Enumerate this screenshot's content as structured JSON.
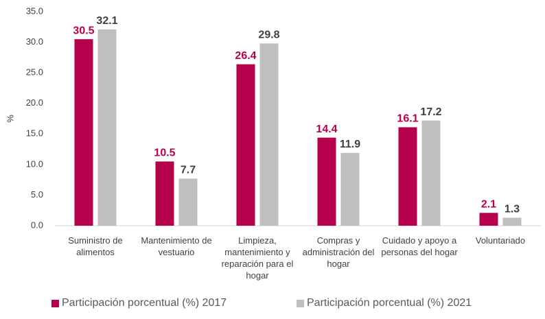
{
  "chart_data": {
    "type": "bar",
    "y_label": "%",
    "categories": [
      "Suministro de alimentos",
      "Mantenimiento de vestuario",
      "Limpieza, mantenimiento y reparación para el hogar",
      "Compras y administración del hogar",
      "Cuidado y apoyo a personas del hogar",
      "Voluntariado"
    ],
    "series": [
      {
        "name": "Participación porcentual (%) 2017",
        "color": "#b5004b",
        "label_color": "#b5004b",
        "values": [
          30.5,
          10.5,
          26.4,
          14.4,
          16.1,
          2.1
        ]
      },
      {
        "name": "Participación porcentual (%) 2021",
        "color": "#bfbfbf",
        "label_color": "#3f3f3f",
        "values": [
          32.1,
          7.7,
          29.8,
          11.9,
          17.2,
          1.3
        ]
      }
    ],
    "ylim": [
      0,
      35
    ],
    "yticks": [
      {
        "value": 0,
        "label": "0.0"
      },
      {
        "value": 5,
        "label": "5.0"
      },
      {
        "value": 10,
        "label": "10.0"
      },
      {
        "value": 15,
        "label": "15.0"
      },
      {
        "value": 20,
        "label": "20.0"
      },
      {
        "value": 25,
        "label": "25.0"
      },
      {
        "value": 30,
        "label": "30.0"
      },
      {
        "value": 35,
        "label": "35.0"
      }
    ],
    "legend": "bottom",
    "grid": false
  }
}
